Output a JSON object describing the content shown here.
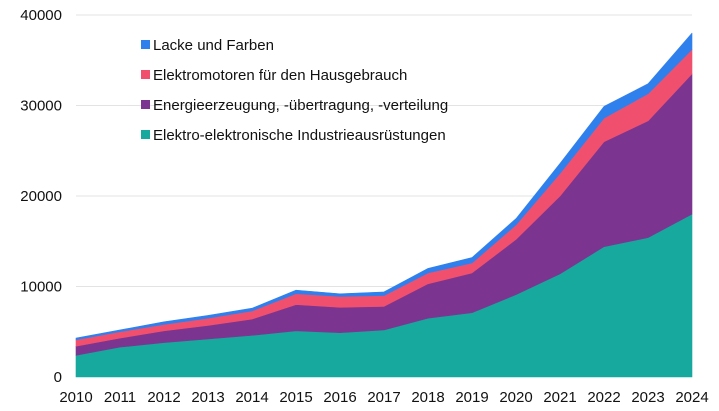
{
  "chart_data": {
    "type": "area",
    "stacked": true,
    "x": [
      "2010",
      "2011",
      "2012",
      "2013",
      "2014",
      "2015",
      "2016",
      "2017",
      "2018",
      "2019",
      "2020",
      "2021",
      "2022",
      "2023",
      "2024"
    ],
    "ylim": [
      0,
      40000
    ],
    "yticks": [
      "0",
      "10000",
      "20000",
      "30000",
      "40000"
    ],
    "grid": true,
    "legend_position": "top-left",
    "series": [
      {
        "name": "Elektro-elektronische Industrieausrüstungen",
        "color": "#17a89e",
        "values": [
          2400,
          3300,
          3800,
          4200,
          4600,
          5100,
          4900,
          5200,
          6500,
          7100,
          9100,
          11400,
          14400,
          15400,
          18000
        ]
      },
      {
        "name": "Energieerzeugung, -übertragung, -verteilung",
        "color": "#7b3591",
        "values": [
          1000,
          1000,
          1300,
          1500,
          1800,
          2900,
          2800,
          2600,
          3800,
          4400,
          6100,
          8600,
          11600,
          12900,
          15500
        ]
      },
      {
        "name": "Elektromotoren für den Hausgebrauch",
        "color": "#f0506e",
        "values": [
          700,
          700,
          700,
          800,
          900,
          1200,
          1200,
          1200,
          1200,
          1100,
          1600,
          2500,
          2600,
          3000,
          2700
        ]
      },
      {
        "name": "Lacke und Farben",
        "color": "#2f80ed",
        "values": [
          200,
          200,
          300,
          300,
          300,
          400,
          300,
          400,
          500,
          600,
          700,
          1100,
          1300,
          1100,
          1800
        ]
      }
    ]
  }
}
